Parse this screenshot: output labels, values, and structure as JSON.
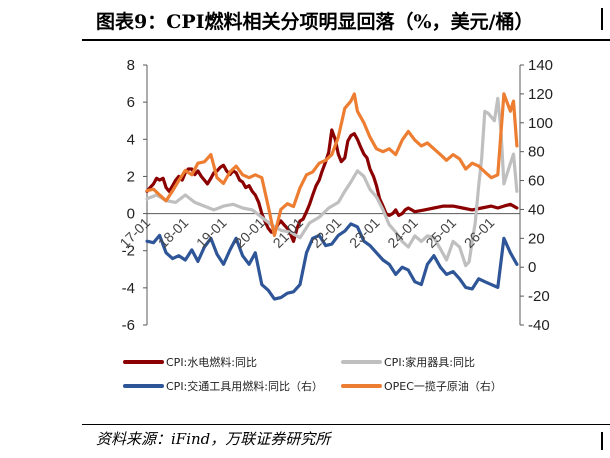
{
  "header": {
    "title": "图表9：CPI燃料相关分项明显回落（%，美元/桶）"
  },
  "footer": {
    "source": "资料来源：iFind，万联证券研究所"
  },
  "chart_data": {
    "type": "line",
    "title": "",
    "ylim_left": [
      -6,
      8
    ],
    "yticks_left": [
      "8",
      "6",
      "4",
      "2",
      "0",
      "-2",
      "-4",
      "-6"
    ],
    "ylim_right": [
      -40,
      140
    ],
    "yticks_right": [
      "140",
      "120",
      "100",
      "80",
      "60",
      "40",
      "20",
      "0",
      "-20",
      "-40"
    ],
    "categories": [
      "17-01",
      "18-01",
      "19-01",
      "20-01",
      "21-01",
      "22-01",
      "23-01",
      "24-01",
      "25-01",
      "26-01"
    ],
    "x_range": [
      2017.0,
      2026.75
    ],
    "grid": false,
    "legend_position": "bottom",
    "series": [
      {
        "name": "CPI:水电燃料:同比",
        "axis": "left",
        "color": "#8B0000",
        "x": [
          2017.0,
          2017.08,
          2017.17,
          2017.25,
          2017.33,
          2017.42,
          2017.5,
          2017.58,
          2017.67,
          2017.75,
          2017.83,
          2017.92,
          2018.0,
          2018.08,
          2018.17,
          2018.25,
          2018.33,
          2018.42,
          2018.5,
          2018.58,
          2018.67,
          2018.75,
          2018.83,
          2018.92,
          2019.0,
          2019.08,
          2019.17,
          2019.25,
          2019.33,
          2019.42,
          2019.5,
          2019.58,
          2019.67,
          2019.75,
          2019.83,
          2019.92,
          2020.0,
          2020.08,
          2020.17,
          2020.25,
          2020.33,
          2020.42,
          2020.5,
          2020.58,
          2020.67,
          2020.75,
          2020.83,
          2020.92,
          2021.0,
          2021.08,
          2021.17,
          2021.25,
          2021.33,
          2021.42,
          2021.5,
          2021.58,
          2021.67,
          2021.75,
          2021.83,
          2021.92,
          2022.0,
          2022.08,
          2022.17,
          2022.25,
          2022.33,
          2022.42,
          2022.5,
          2022.58,
          2022.67,
          2022.75,
          2022.83,
          2022.92,
          2023.0,
          2023.08,
          2023.17,
          2023.25,
          2023.33,
          2023.42,
          2023.5,
          2023.58,
          2023.67,
          2023.75,
          2023.83,
          2023.92,
          2024.0,
          2024.25,
          2024.5,
          2024.75,
          2025.0,
          2025.25,
          2025.5,
          2025.75,
          2026.0,
          2026.17,
          2026.33,
          2026.5,
          2026.67
        ],
        "values": [
          1.2,
          1.4,
          1.6,
          1.9,
          1.8,
          1.9,
          1.4,
          1.2,
          1.5,
          1.8,
          2.0,
          1.8,
          2.2,
          2.4,
          2.4,
          2.1,
          2.3,
          2.0,
          1.8,
          1.6,
          1.9,
          2.2,
          2.3,
          2.5,
          2.6,
          2.3,
          2.1,
          2.3,
          2.2,
          1.8,
          1.7,
          1.4,
          1.5,
          1.2,
          1.0,
          0.6,
          0.0,
          -0.4,
          -0.8,
          -1.0,
          -1.0,
          -0.6,
          -0.4,
          -0.6,
          -0.8,
          -1.1,
          -1.5,
          -0.8,
          -0.4,
          -0.3,
          0.1,
          0.5,
          1.0,
          1.5,
          1.8,
          2.3,
          2.8,
          3.3,
          4.5,
          4.0,
          3.2,
          2.8,
          3.0,
          3.9,
          4.2,
          4.3,
          4.0,
          3.6,
          3.2,
          3.0,
          2.4,
          2.0,
          1.5,
          0.8,
          0.4,
          0.0,
          -0.1,
          0.0,
          0.2,
          -0.1,
          0.0,
          0.2,
          0.3,
          0.2,
          0.1,
          0.2,
          0.3,
          0.4,
          0.4,
          0.3,
          0.2,
          0.3,
          0.4,
          0.3,
          0.4,
          0.5,
          0.3
        ]
      },
      {
        "name": "CPI:家用器具:同比",
        "axis": "left",
        "color": "#BFBFBF",
        "x": [
          2017.0,
          2017.25,
          2017.5,
          2017.75,
          2018.0,
          2018.25,
          2018.5,
          2018.75,
          2019.0,
          2019.25,
          2019.5,
          2019.75,
          2020.0,
          2020.25,
          2020.5,
          2020.75,
          2021.0,
          2021.25,
          2021.5,
          2021.75,
          2022.0,
          2022.17,
          2022.33,
          2022.5,
          2022.67,
          2022.83,
          2023.0,
          2023.17,
          2023.33,
          2023.5,
          2023.67,
          2023.83,
          2024.0,
          2024.17,
          2024.33,
          2024.5,
          2024.67,
          2024.83,
          2025.0,
          2025.17,
          2025.33,
          2025.42,
          2025.5,
          2025.58,
          2025.67,
          2025.75,
          2025.83,
          2025.92,
          2026.0,
          2026.08,
          2026.17,
          2026.25,
          2026.33,
          2026.42,
          2026.5,
          2026.58,
          2026.67
        ],
        "values": [
          0.8,
          1.0,
          0.7,
          0.6,
          1.0,
          0.6,
          0.4,
          0.2,
          0.4,
          0.5,
          0.3,
          0.2,
          -0.2,
          -0.6,
          -0.9,
          -1.0,
          -1.3,
          -0.5,
          -0.2,
          0.3,
          0.6,
          1.2,
          1.7,
          2.3,
          2.0,
          1.3,
          0.9,
          0.2,
          -0.6,
          -1.0,
          -1.5,
          -1.8,
          -1.2,
          -1.5,
          -1.2,
          -1.3,
          -1.9,
          -2.5,
          -1.5,
          -1.8,
          -2.8,
          -2.6,
          -1.5,
          -0.5,
          1.5,
          3.0,
          5.5,
          5.4,
          5.2,
          5.0,
          6.2,
          4.5,
          1.6,
          2.2,
          2.7,
          3.2,
          1.2
        ]
      },
      {
        "name": "CPI:交通工具用燃料:同比（右）",
        "axis": "right",
        "color": "#2E5597",
        "x": [
          2017.0,
          2017.17,
          2017.33,
          2017.5,
          2017.67,
          2017.83,
          2018.0,
          2018.17,
          2018.33,
          2018.5,
          2018.67,
          2018.83,
          2019.0,
          2019.17,
          2019.33,
          2019.5,
          2019.67,
          2019.83,
          2020.0,
          2020.17,
          2020.33,
          2020.5,
          2020.67,
          2020.83,
          2021.0,
          2021.17,
          2021.33,
          2021.5,
          2021.67,
          2021.83,
          2022.0,
          2022.17,
          2022.33,
          2022.5,
          2022.67,
          2022.83,
          2023.0,
          2023.17,
          2023.33,
          2023.5,
          2023.67,
          2023.83,
          2024.0,
          2024.17,
          2024.33,
          2024.5,
          2024.67,
          2024.83,
          2025.0,
          2025.17,
          2025.33,
          2025.5,
          2025.67,
          2025.83,
          2026.0,
          2026.17,
          2026.33,
          2026.5,
          2026.67
        ],
        "values": [
          18,
          17,
          22,
          10,
          6,
          8,
          5,
          12,
          4,
          14,
          20,
          9,
          2,
          12,
          20,
          8,
          2,
          10,
          -12,
          -16,
          -22,
          -21,
          -18,
          -17,
          -12,
          10,
          20,
          22,
          15,
          16,
          22,
          25,
          30,
          28,
          18,
          15,
          10,
          5,
          2,
          -5,
          0,
          -2,
          -10,
          -12,
          2,
          8,
          0,
          -5,
          -3,
          -8,
          -14,
          -15,
          -8,
          -10,
          -12,
          -14,
          20,
          10,
          2
        ]
      },
      {
        "name": "OPEC一揽子原油（右）",
        "axis": "right",
        "color": "#ED7D31",
        "x": [
          2017.0,
          2017.17,
          2017.33,
          2017.5,
          2017.67,
          2017.83,
          2018.0,
          2018.17,
          2018.33,
          2018.5,
          2018.67,
          2018.83,
          2019.0,
          2019.17,
          2019.33,
          2019.5,
          2019.67,
          2019.83,
          2020.0,
          2020.17,
          2020.33,
          2020.5,
          2020.67,
          2020.83,
          2021.0,
          2021.17,
          2021.33,
          2021.5,
          2021.67,
          2021.83,
          2022.0,
          2022.17,
          2022.33,
          2022.42,
          2022.5,
          2022.67,
          2022.83,
          2023.0,
          2023.17,
          2023.33,
          2023.5,
          2023.67,
          2023.83,
          2024.0,
          2024.17,
          2024.33,
          2024.5,
          2024.67,
          2024.83,
          2025.0,
          2025.17,
          2025.33,
          2025.5,
          2025.67,
          2025.83,
          2026.0,
          2026.17,
          2026.33,
          2026.5,
          2026.58,
          2026.67
        ],
        "values": [
          53,
          54,
          50,
          46,
          53,
          60,
          67,
          64,
          72,
          73,
          78,
          62,
          58,
          66,
          70,
          64,
          62,
          64,
          62,
          42,
          22,
          40,
          44,
          42,
          55,
          64,
          66,
          72,
          74,
          78,
          90,
          110,
          115,
          120,
          108,
          100,
          90,
          82,
          80,
          82,
          78,
          88,
          94,
          88,
          84,
          86,
          82,
          78,
          74,
          78,
          75,
          68,
          72,
          70,
          66,
          62,
          64,
          120,
          108,
          115,
          84
        ]
      }
    ]
  },
  "legend": [
    {
      "label": "CPI:水电燃料:同比",
      "color": "#8B0000"
    },
    {
      "label": "CPI:家用器具:同比",
      "color": "#BFBFBF"
    },
    {
      "label": "CPI:交通工具用燃料:同比（右）",
      "color": "#2E5597"
    },
    {
      "label": "OPEC一揽子原油（右）",
      "color": "#ED7D31"
    }
  ]
}
